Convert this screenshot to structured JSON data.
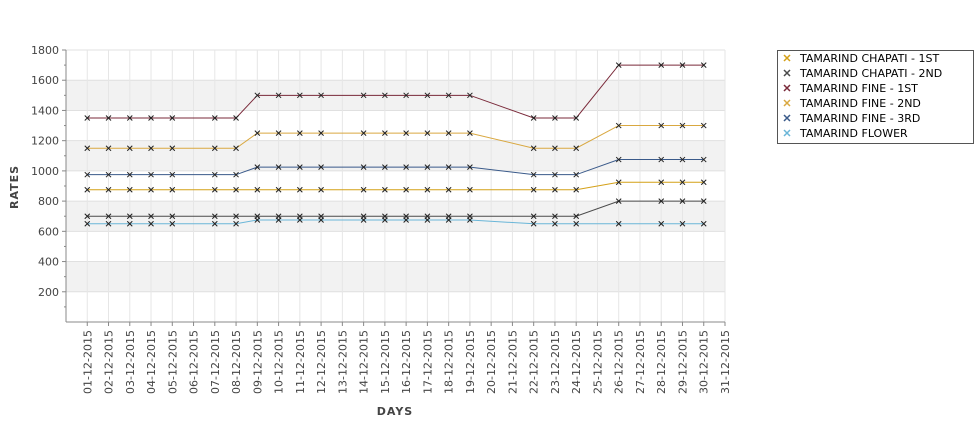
{
  "chart_data": {
    "type": "line",
    "xlabel": "DAYS",
    "ylabel": "RATES",
    "ylim": [
      0,
      1800
    ],
    "yticks": [
      200,
      400,
      600,
      800,
      1000,
      1200,
      1400,
      1600,
      1800
    ],
    "grid": true,
    "legend_position": "top-right",
    "categories": [
      "01-12-2015",
      "02-12-2015",
      "03-12-2015",
      "04-12-2015",
      "05-12-2015",
      "06-12-2015",
      "07-12-2015",
      "08-12-2015",
      "09-12-2015",
      "10-12-2015",
      "11-12-2015",
      "12-12-2015",
      "13-12-2015",
      "14-12-2015",
      "15-12-2015",
      "16-12-2015",
      "17-12-2015",
      "18-12-2015",
      "19-12-2015",
      "20-12-2015",
      "21-12-2015",
      "22-12-2015",
      "23-12-2015",
      "24-12-2015",
      "25-12-2015",
      "26-12-2015",
      "27-12-2015",
      "28-12-2015",
      "29-12-2015",
      "30-12-2015",
      "31-12-2015"
    ],
    "series": [
      {
        "name": "TAMARIND CHAPATI - 1ST",
        "color": "#d4a017",
        "values": [
          875,
          875,
          875,
          875,
          875,
          null,
          875,
          875,
          875,
          875,
          875,
          875,
          null,
          875,
          875,
          875,
          875,
          875,
          875,
          null,
          null,
          875,
          875,
          875,
          null,
          925,
          null,
          925,
          925,
          925,
          null
        ]
      },
      {
        "name": "TAMARIND CHAPATI - 2ND",
        "color": "#4a4a4a",
        "values": [
          700,
          700,
          700,
          700,
          700,
          null,
          700,
          700,
          700,
          700,
          700,
          700,
          null,
          700,
          700,
          700,
          700,
          700,
          700,
          null,
          null,
          700,
          700,
          700,
          null,
          800,
          null,
          800,
          800,
          800,
          null
        ]
      },
      {
        "name": "TAMARIND FINE - 1ST",
        "color": "#7a2a3a",
        "values": [
          1350,
          1350,
          1350,
          1350,
          1350,
          null,
          1350,
          1350,
          1500,
          1500,
          1500,
          1500,
          null,
          1500,
          1500,
          1500,
          1500,
          1500,
          1500,
          null,
          null,
          1350,
          1350,
          1350,
          null,
          1700,
          null,
          1700,
          1700,
          1700,
          null
        ]
      },
      {
        "name": "TAMARIND FINE - 2ND",
        "color": "#d9a840",
        "values": [
          1150,
          1150,
          1150,
          1150,
          1150,
          null,
          1150,
          1150,
          1250,
          1250,
          1250,
          1250,
          null,
          1250,
          1250,
          1250,
          1250,
          1250,
          1250,
          null,
          null,
          1150,
          1150,
          1150,
          null,
          1300,
          null,
          1300,
          1300,
          1300,
          null
        ]
      },
      {
        "name": "TAMARIND FINE - 3RD",
        "color": "#3a5a8a",
        "values": [
          975,
          975,
          975,
          975,
          975,
          null,
          975,
          975,
          1025,
          1025,
          1025,
          1025,
          null,
          1025,
          1025,
          1025,
          1025,
          1025,
          1025,
          null,
          null,
          975,
          975,
          975,
          null,
          1075,
          null,
          1075,
          1075,
          1075,
          null
        ]
      },
      {
        "name": "TAMARIND FLOWER",
        "color": "#6ab6d8",
        "values": [
          650,
          650,
          650,
          650,
          650,
          null,
          650,
          650,
          675,
          675,
          675,
          675,
          null,
          675,
          675,
          675,
          675,
          675,
          675,
          null,
          null,
          650,
          650,
          650,
          null,
          650,
          null,
          650,
          650,
          650,
          null
        ]
      }
    ]
  }
}
